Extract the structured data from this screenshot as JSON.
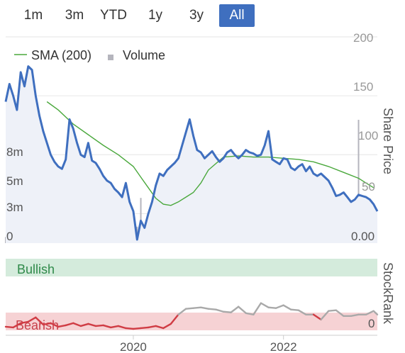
{
  "range_selector": {
    "options": [
      "1m",
      "3m",
      "YTD",
      "1y",
      "3y",
      "All"
    ],
    "selected": "All"
  },
  "legend": {
    "sma_label": "SMA (200)",
    "volume_label": "Volume"
  },
  "colors": {
    "price": "#3f6fbf",
    "sma": "#4aa83c",
    "volume": "#b5b5bd",
    "bullish_band": "#d4ebdc",
    "bearish_band": "#f6d2d4",
    "rank_high": "#a9a9a9",
    "rank_low": "#d03c44",
    "active_button": "#3f6fbf"
  },
  "chart_data": [
    {
      "type": "line",
      "right_axis_title": "Share Price",
      "price_ticks": [
        "200",
        "150",
        "100",
        "50"
      ],
      "volume_ticks": [
        "8m",
        "5m",
        "3m",
        "0"
      ],
      "volume_zero_label": "0.00",
      "x_ticks": [
        "2020",
        "2022"
      ],
      "x_range": [
        2018.3,
        2023.25
      ],
      "ylim": [
        25,
        200
      ],
      "series": [
        {
          "name": "Share Price",
          "x": [
            2018.3,
            2018.35,
            2018.4,
            2018.45,
            2018.5,
            2018.55,
            2018.6,
            2018.65,
            2018.7,
            2018.75,
            2018.8,
            2018.85,
            2018.9,
            2018.95,
            2019.0,
            2019.05,
            2019.1,
            2019.15,
            2019.2,
            2019.25,
            2019.3,
            2019.35,
            2019.4,
            2019.45,
            2019.5,
            2019.55,
            2019.6,
            2019.65,
            2019.7,
            2019.75,
            2019.8,
            2019.85,
            2019.9,
            2019.95,
            2020.0,
            2020.05,
            2020.1,
            2020.15,
            2020.2,
            2020.25,
            2020.3,
            2020.35,
            2020.4,
            2020.45,
            2020.5,
            2020.55,
            2020.6,
            2020.65,
            2020.7,
            2020.75,
            2020.8,
            2020.85,
            2020.9,
            2020.95,
            2021.0,
            2021.05,
            2021.1,
            2021.15,
            2021.2,
            2021.25,
            2021.3,
            2021.35,
            2021.4,
            2021.45,
            2021.5,
            2021.55,
            2021.6,
            2021.65,
            2021.7,
            2021.75,
            2021.8,
            2021.85,
            2021.9,
            2021.95,
            2022.0,
            2022.05,
            2022.1,
            2022.15,
            2022.2,
            2022.25,
            2022.3,
            2022.35,
            2022.4,
            2022.45,
            2022.5,
            2022.55,
            2022.6,
            2022.65,
            2022.7,
            2022.75,
            2022.8,
            2022.85,
            2022.9,
            2022.95,
            2023.0,
            2023.05,
            2023.1,
            2023.15,
            2023.2,
            2023.25
          ],
          "y": [
            145,
            160,
            150,
            138,
            170,
            158,
            175,
            172,
            150,
            133,
            120,
            110,
            100,
            94,
            90,
            88,
            96,
            130,
            122,
            110,
            100,
            98,
            110,
            95,
            93,
            88,
            82,
            78,
            76,
            71,
            68,
            64,
            76,
            60,
            52,
            28,
            44,
            38,
            50,
            60,
            74,
            84,
            82,
            87,
            90,
            93,
            97,
            108,
            119,
            130,
            116,
            104,
            102,
            97,
            100,
            103,
            98,
            94,
            97,
            102,
            104,
            100,
            97,
            100,
            104,
            102,
            101,
            99,
            100,
            108,
            120,
            96,
            94,
            92,
            97,
            96,
            89,
            87,
            90,
            92,
            86,
            90,
            84,
            82,
            84,
            81,
            78,
            72,
            65,
            66,
            68,
            64,
            60,
            62,
            66,
            65,
            64,
            62,
            58,
            52
          ]
        },
        {
          "name": "SMA (200)",
          "x": [
            2018.85,
            2019.0,
            2019.2,
            2019.4,
            2019.6,
            2019.8,
            2020.0,
            2020.1,
            2020.2,
            2020.3,
            2020.4,
            2020.5,
            2020.6,
            2020.7,
            2020.8,
            2020.9,
            2021.0,
            2021.2,
            2021.4,
            2021.6,
            2021.8,
            2022.0,
            2022.2,
            2022.4,
            2022.6,
            2022.8,
            2023.0,
            2023.1,
            2023.2
          ],
          "y": [
            145,
            138,
            126,
            117,
            108,
            100,
            90,
            81,
            72,
            63,
            58,
            57,
            60,
            64,
            68,
            76,
            87,
            98,
            99,
            98,
            98,
            97,
            96,
            94,
            90,
            85,
            80,
            76,
            72
          ]
        }
      ],
      "volume": {
        "x": [
          2018.3,
          2018.45,
          2018.6,
          2018.75,
          2018.9,
          2019.05,
          2019.2,
          2019.35,
          2019.5,
          2019.65,
          2019.8,
          2019.95,
          2020.05,
          2020.1,
          2020.2,
          2020.35,
          2020.5,
          2020.65,
          2020.8,
          2020.95,
          2021.1,
          2021.25,
          2021.4,
          2021.55,
          2021.7,
          2021.85,
          2022.0,
          2022.15,
          2022.3,
          2022.45,
          2022.6,
          2022.75,
          2022.9,
          2023.0,
          2023.15,
          2023.22
        ],
        "values": [
          0.3,
          0.4,
          0.5,
          0.3,
          0.4,
          0.3,
          0.4,
          0.3,
          0.3,
          0.5,
          0.3,
          0.4,
          0.8,
          2.2,
          0.6,
          0.5,
          0.4,
          0.6,
          0.5,
          0.4,
          0.5,
          0.4,
          0.9,
          1.8,
          2.1,
          0.5,
          0.4,
          0.3,
          0.5,
          0.8,
          0.4,
          0.3,
          0.4,
          6.0,
          0.4,
          1.0
        ]
      }
    },
    {
      "type": "area",
      "right_axis_title": "StockRank",
      "bands": [
        "Bullish",
        "Bearish"
      ],
      "y_ticks": [
        "0"
      ],
      "ylim": [
        0,
        100
      ],
      "x": [
        2018.3,
        2018.4,
        2018.5,
        2018.6,
        2018.7,
        2018.8,
        2018.9,
        2019.0,
        2019.1,
        2019.2,
        2019.3,
        2019.4,
        2019.5,
        2019.6,
        2019.7,
        2019.8,
        2019.9,
        2020.0,
        2020.1,
        2020.2,
        2020.3,
        2020.4,
        2020.5,
        2020.6,
        2020.7,
        2020.8,
        2020.9,
        2021.0,
        2021.1,
        2021.2,
        2021.3,
        2021.4,
        2021.5,
        2021.6,
        2021.7,
        2021.8,
        2021.9,
        2022.0,
        2022.1,
        2022.2,
        2022.3,
        2022.4,
        2022.5,
        2022.6,
        2022.7,
        2022.8,
        2022.9,
        2023.0,
        2023.1,
        2023.2,
        2023.25
      ],
      "values": [
        5,
        4,
        10,
        12,
        18,
        8,
        10,
        5,
        7,
        10,
        6,
        9,
        6,
        7,
        4,
        6,
        3,
        2,
        3,
        4,
        6,
        3,
        9,
        22,
        30,
        31,
        32,
        30,
        29,
        26,
        25,
        33,
        24,
        22,
        38,
        32,
        31,
        35,
        29,
        28,
        22,
        22,
        15,
        27,
        28,
        20,
        20,
        22,
        22,
        27,
        22
      ]
    }
  ]
}
